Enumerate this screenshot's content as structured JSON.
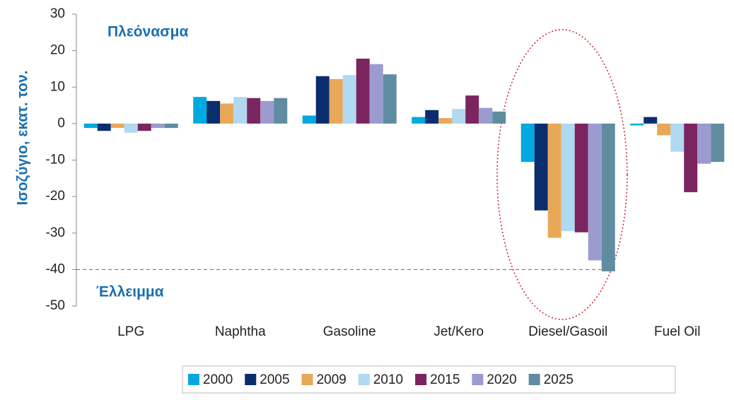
{
  "chart_data": {
    "type": "bar",
    "ylabel": "Ισοζύγιο, εκατ. τον.",
    "annotations": [
      "Πλεόνασμα",
      "Έλλειμμα"
    ],
    "categories": [
      "LPG",
      "Naphtha",
      "Gasoline",
      "Jet/Kero",
      "Diesel/Gasoil",
      "Fuel Oil"
    ],
    "series": [
      {
        "name": "2000",
        "color": "#00a9e0",
        "values": [
          -1.2,
          7.3,
          2.2,
          1.8,
          -10.5,
          -0.5
        ]
      },
      {
        "name": "2005",
        "color": "#0a2d6e",
        "values": [
          -2,
          6.2,
          13,
          3.7,
          -23.8,
          1.8
        ]
      },
      {
        "name": "2009",
        "color": "#e8a857",
        "values": [
          -1.2,
          5.5,
          12.2,
          1.5,
          -31.3,
          -3.2
        ]
      },
      {
        "name": "2010",
        "color": "#b0d8f0",
        "values": [
          -2.5,
          7.3,
          13.3,
          4,
          -29.5,
          -7.7
        ]
      },
      {
        "name": "2015",
        "color": "#7b2560",
        "values": [
          -2,
          7,
          17.8,
          7.7,
          -29.8,
          -18.8
        ]
      },
      {
        "name": "2020",
        "color": "#9b9bd0",
        "values": [
          -1.2,
          6.2,
          16.3,
          4.3,
          -37.5,
          -11
        ]
      },
      {
        "name": "2025",
        "color": "#5f8ca0",
        "values": [
          -1.2,
          7,
          13.5,
          3.3,
          -40.5,
          -10.5
        ]
      }
    ],
    "ylim": [
      -50,
      30
    ],
    "yticks": [
      30,
      20,
      10,
      0,
      -10,
      -20,
      -30,
      -40,
      -50
    ],
    "grid": false
  }
}
